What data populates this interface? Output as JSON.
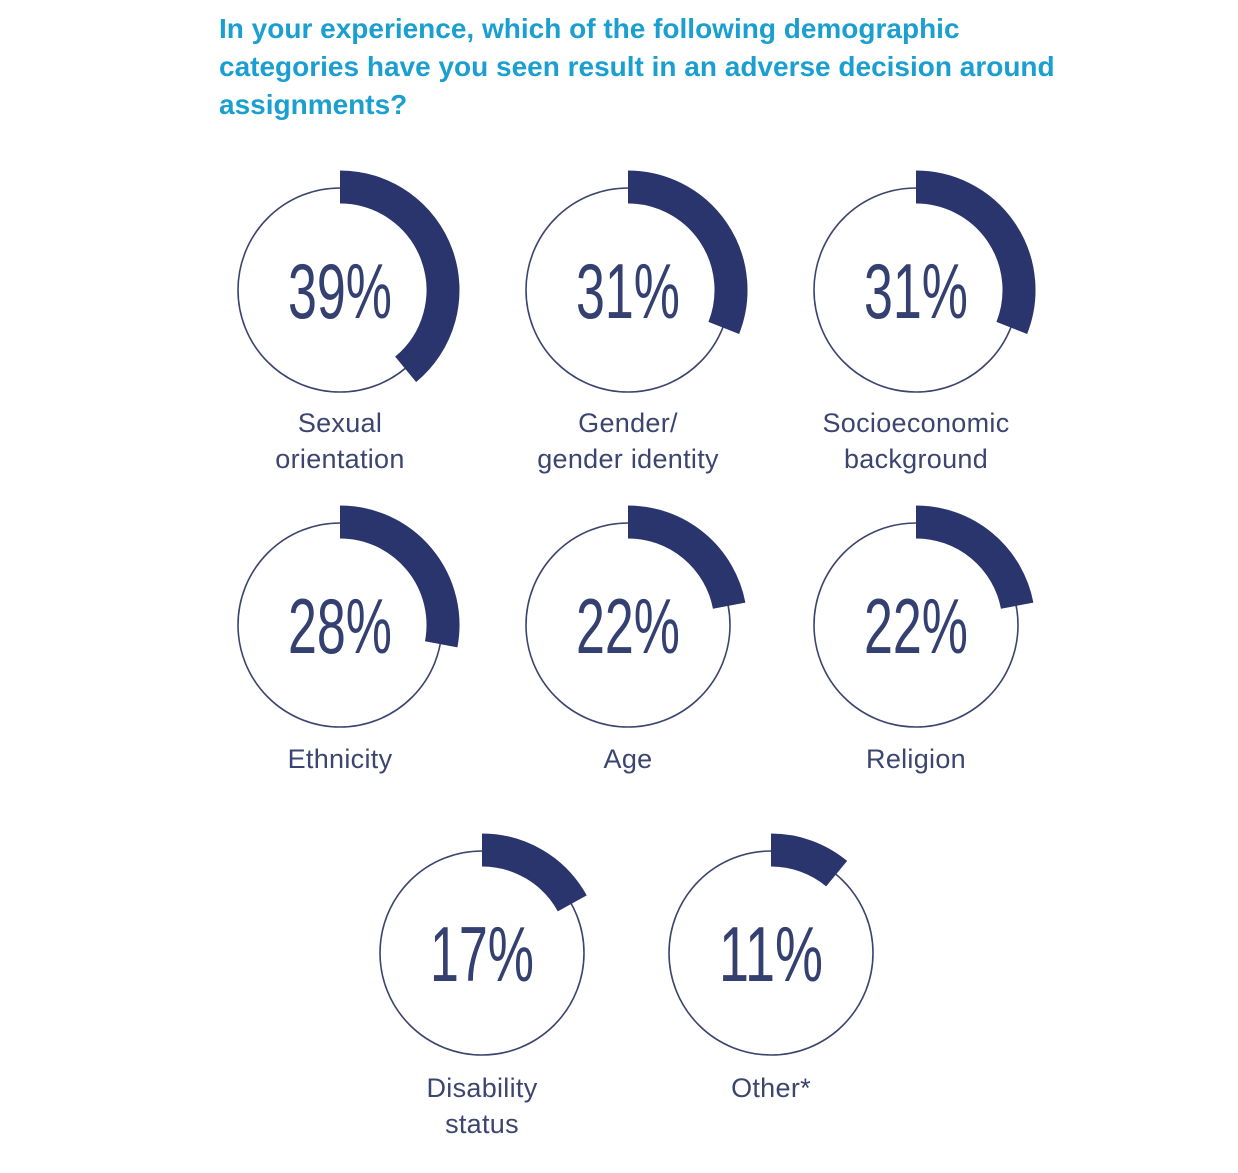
{
  "chart_data": {
    "type": "donut",
    "title": "In your experience, which of the following demographic categories have you seen result in an adverse decision around assignments?",
    "unit": "%",
    "series": [
      {
        "name": "Sexual orientation",
        "label_lines": [
          "Sexual",
          "orientation"
        ],
        "value": 39,
        "display": "39%"
      },
      {
        "name": "Gender/ gender identity",
        "label_lines": [
          "Gender/",
          "gender identity"
        ],
        "value": 31,
        "display": "31%"
      },
      {
        "name": "Socioeconomic background",
        "label_lines": [
          "Socioeconomic",
          "background"
        ],
        "value": 31,
        "display": "31%"
      },
      {
        "name": "Ethnicity",
        "label_lines": [
          "Ethnicity"
        ],
        "value": 28,
        "display": "28%"
      },
      {
        "name": "Age",
        "label_lines": [
          "Age"
        ],
        "value": 22,
        "display": "22%"
      },
      {
        "name": "Religion",
        "label_lines": [
          "Religion"
        ],
        "value": 22,
        "display": "22%"
      },
      {
        "name": "Disability status",
        "label_lines": [
          "Disability",
          "status"
        ],
        "value": 17,
        "display": "17%"
      },
      {
        "name": "Other*",
        "label_lines": [
          "Other*"
        ],
        "value": 11,
        "display": "11%"
      }
    ]
  },
  "colors": {
    "title": "#1a9fd0",
    "arc": "#2a356e",
    "ring": "#3c4470",
    "text": "#3c4470"
  }
}
